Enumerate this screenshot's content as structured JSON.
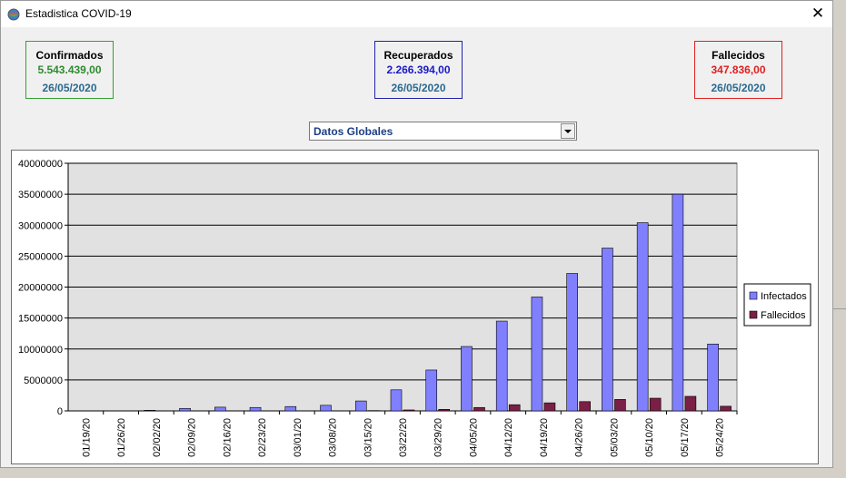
{
  "window": {
    "title": "Estadistica COVID-19",
    "close_glyph": "✕",
    "icon": "globe-icon"
  },
  "stats": [
    {
      "id": "confirmados",
      "label": "Confirmados",
      "value": "5.543.439,00",
      "date": "26/05/2020",
      "color": "#2e8b2e",
      "border": "#35a035"
    },
    {
      "id": "recuperados",
      "label": "Recuperados",
      "value": "2.266.394,00",
      "date": "26/05/2020",
      "color": "#1a1ac8",
      "border": "#2222aa"
    },
    {
      "id": "fallecidos",
      "label": "Fallecidos",
      "value": "347.836,00",
      "date": "26/05/2020",
      "color": "#e02020",
      "border": "#e02020"
    }
  ],
  "selector": {
    "value": "Datos Globales"
  },
  "chart_data": {
    "type": "bar",
    "categories": [
      "01/19/20",
      "01/26/20",
      "02/02/20",
      "02/09/20",
      "02/16/20",
      "02/23/20",
      "03/01/20",
      "03/08/20",
      "03/15/20",
      "03/22/20",
      "03/29/20",
      "04/05/20",
      "04/12/20",
      "04/19/20",
      "04/26/20",
      "05/03/20",
      "05/10/20",
      "05/17/20",
      "05/24/20"
    ],
    "series": [
      {
        "name": "Infectados",
        "color": "#8080ff",
        "values": [
          0,
          0,
          100000,
          400000,
          600000,
          550000,
          700000,
          900000,
          1600000,
          3400000,
          6600000,
          10400000,
          14500000,
          18400000,
          22200000,
          26300000,
          30400000,
          35000000,
          10800000
        ]
      },
      {
        "name": "Fallecidos",
        "color": "#7a1f45",
        "values": [
          0,
          0,
          0,
          0,
          0,
          0,
          0,
          30000,
          50000,
          150000,
          250000,
          550000,
          1000000,
          1300000,
          1500000,
          1850000,
          2050000,
          2350000,
          750000
        ]
      }
    ],
    "ylim": [
      0,
      40000000
    ],
    "yticks": [
      "0",
      "5000000",
      "10000000",
      "15000000",
      "20000000",
      "25000000",
      "30000000",
      "35000000",
      "40000000"
    ],
    "grid": true,
    "legend": "right"
  }
}
